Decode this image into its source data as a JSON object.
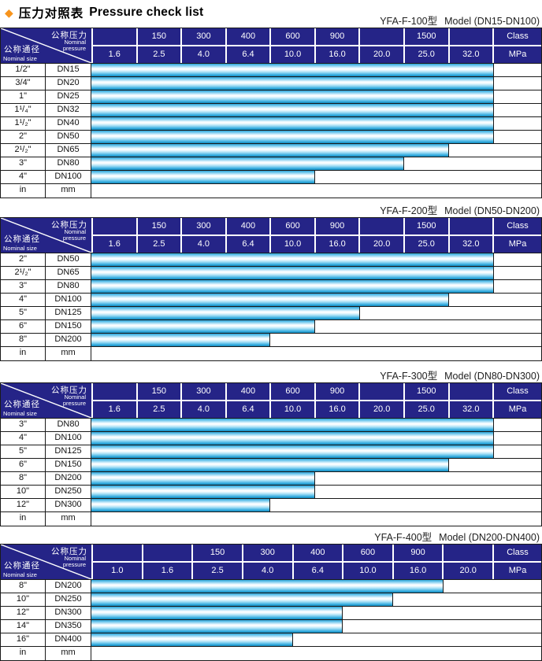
{
  "page_title": {
    "diamond": "◆",
    "zh": "压力对照表",
    "en": "Pressure check list"
  },
  "colors": {
    "header_bg": "#252487",
    "header_text": "#ffffff",
    "bar_main": "#29a5d9",
    "bar_highlight": "#ffffff",
    "diamond_accent": "#f7941d",
    "border": "#1a1a1a"
  },
  "corner": {
    "pressure_zh": "公称压力",
    "pressure_en": "Nominal\npressure",
    "size_zh": "公称通径",
    "size_en": "Nominal size"
  },
  "tables": [
    {
      "title_model": "YFA-F-100型",
      "title_range": "Model (DN15-DN100)",
      "class_labels": [
        "",
        "150",
        "300",
        "400",
        "600",
        "900",
        "",
        "1500",
        ""
      ],
      "class_unit": "Class",
      "mpa_labels": [
        "1.6",
        "2.5",
        "4.0",
        "6.4",
        "10.0",
        "16.0",
        "20.0",
        "25.0",
        "32.0"
      ],
      "mpa_unit": "MPa",
      "rows": [
        {
          "size": "1/2\"",
          "dn": "DN15",
          "span": 9,
          "max_mpa": "32.0"
        },
        {
          "size": "3/4\"",
          "dn": "DN20",
          "span": 9,
          "max_mpa": "32.0"
        },
        {
          "size": "1\"",
          "dn": "DN25",
          "span": 9,
          "max_mpa": "32.0"
        },
        {
          "size": "1¹/₄\"",
          "dn": "DN32",
          "span": 9,
          "max_mpa": "32.0"
        },
        {
          "size": "1¹/₂\"",
          "dn": "DN40",
          "span": 9,
          "max_mpa": "32.0"
        },
        {
          "size": "2\"",
          "dn": "DN50",
          "span": 9,
          "max_mpa": "32.0"
        },
        {
          "size": "2¹/₂\"",
          "dn": "DN65",
          "span": 8,
          "max_mpa": "25.0"
        },
        {
          "size": "3\"",
          "dn": "DN80",
          "span": 7,
          "max_mpa": "20.0"
        },
        {
          "size": "4\"",
          "dn": "DN100",
          "span": 5,
          "max_mpa": "10.0"
        }
      ],
      "footer": {
        "size_unit": "in",
        "dn_unit": "mm"
      }
    },
    {
      "title_model": "YFA-F-200型",
      "title_range": "Model (DN50-DN200)",
      "class_labels": [
        "",
        "150",
        "300",
        "400",
        "600",
        "900",
        "",
        "1500",
        ""
      ],
      "class_unit": "Class",
      "mpa_labels": [
        "1.6",
        "2.5",
        "4.0",
        "6.4",
        "10.0",
        "16.0",
        "20.0",
        "25.0",
        "32.0"
      ],
      "mpa_unit": "MPa",
      "rows": [
        {
          "size": "2\"",
          "dn": "DN50",
          "span": 9,
          "max_mpa": "32.0"
        },
        {
          "size": "2¹/₂\"",
          "dn": "DN65",
          "span": 9,
          "max_mpa": "32.0"
        },
        {
          "size": "3\"",
          "dn": "DN80",
          "span": 9,
          "max_mpa": "32.0"
        },
        {
          "size": "4\"",
          "dn": "DN100",
          "span": 8,
          "max_mpa": "25.0"
        },
        {
          "size": "5\"",
          "dn": "DN125",
          "span": 6,
          "max_mpa": "16.0"
        },
        {
          "size": "6\"",
          "dn": "DN150",
          "span": 5,
          "max_mpa": "10.0"
        },
        {
          "size": "8\"",
          "dn": "DN200",
          "span": 4,
          "max_mpa": "6.4"
        }
      ],
      "footer": {
        "size_unit": "in",
        "dn_unit": "mm"
      }
    },
    {
      "title_model": "YFA-F-300型",
      "title_range": "Model (DN80-DN300)",
      "class_labels": [
        "",
        "150",
        "300",
        "400",
        "600",
        "900",
        "",
        "1500",
        ""
      ],
      "class_unit": "Class",
      "mpa_labels": [
        "1.6",
        "2.5",
        "4.0",
        "6.4",
        "10.0",
        "16.0",
        "20.0",
        "25.0",
        "32.0"
      ],
      "mpa_unit": "MPa",
      "rows": [
        {
          "size": "3\"",
          "dn": "DN80",
          "span": 9,
          "max_mpa": "32.0"
        },
        {
          "size": "4\"",
          "dn": "DN100",
          "span": 9,
          "max_mpa": "32.0"
        },
        {
          "size": "5\"",
          "dn": "DN125",
          "span": 9,
          "max_mpa": "32.0"
        },
        {
          "size": "6\"",
          "dn": "DN150",
          "span": 8,
          "max_mpa": "25.0"
        },
        {
          "size": "8\"",
          "dn": "DN200",
          "span": 5,
          "max_mpa": "10.0"
        },
        {
          "size": "10\"",
          "dn": "DN250",
          "span": 5,
          "max_mpa": "10.0"
        },
        {
          "size": "12\"",
          "dn": "DN300",
          "span": 4,
          "max_mpa": "6.4"
        }
      ],
      "footer": {
        "size_unit": "in",
        "dn_unit": "mm"
      }
    },
    {
      "title_model": "YFA-F-400型",
      "title_range": "Model (DN200-DN400)",
      "class_labels": [
        "",
        "",
        "150",
        "300",
        "400",
        "600",
        "900",
        ""
      ],
      "class_unit": "Class",
      "mpa_labels": [
        "1.0",
        "1.6",
        "2.5",
        "4.0",
        "6.4",
        "10.0",
        "16.0",
        "20.0"
      ],
      "mpa_unit": "MPa",
      "rows": [
        {
          "size": "8\"",
          "dn": "DN200",
          "span": 7,
          "max_mpa": "16.0"
        },
        {
          "size": "10\"",
          "dn": "DN250",
          "span": 6,
          "max_mpa": "10.0"
        },
        {
          "size": "12\"",
          "dn": "DN300",
          "span": 5,
          "max_mpa": "6.4"
        },
        {
          "size": "14\"",
          "dn": "DN350",
          "span": 5,
          "max_mpa": "6.4"
        },
        {
          "size": "16\"",
          "dn": "DN400",
          "span": 4,
          "max_mpa": "4.0"
        }
      ],
      "footer": {
        "size_unit": "in",
        "dn_unit": "mm"
      }
    }
  ]
}
